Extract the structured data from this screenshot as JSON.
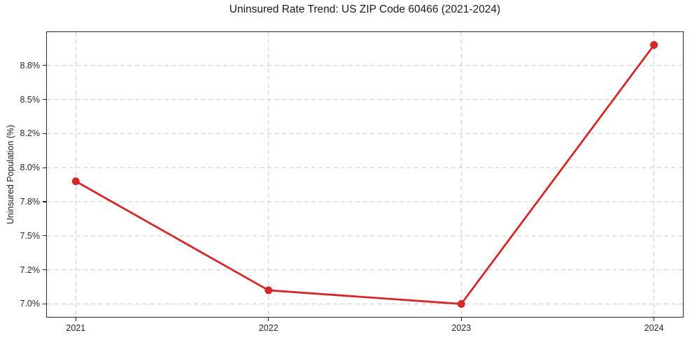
{
  "chart_data": {
    "type": "line",
    "title": "Uninsured Rate Trend: US ZIP Code 60466 (2021-2024)",
    "xlabel": "",
    "ylabel": "Uninsured Population (%)",
    "x": [
      2021,
      2022,
      2023,
      2024
    ],
    "xtick_labels": [
      "2021",
      "2022",
      "2023",
      "2024"
    ],
    "values": [
      7.9,
      7.1,
      7.0,
      8.9
    ],
    "yticks": [
      7.0,
      7.25,
      7.5,
      7.75,
      8.0,
      8.25,
      8.5,
      8.75
    ],
    "ytick_labels": [
      "7.0%",
      "7.2%",
      "7.5%",
      "7.8%",
      "8.0%",
      "8.2%",
      "8.5%",
      "8.8%"
    ],
    "xlim": [
      2020.85,
      2024.15
    ],
    "ylim": [
      6.905,
      8.995
    ],
    "grid": true,
    "legend": false,
    "colors": {
      "line": "#d62728",
      "marker": "#d62728",
      "grid": "#c9c9c9",
      "spine": "#262626",
      "text": "#1a1a1a",
      "background": "#ffffff"
    }
  }
}
